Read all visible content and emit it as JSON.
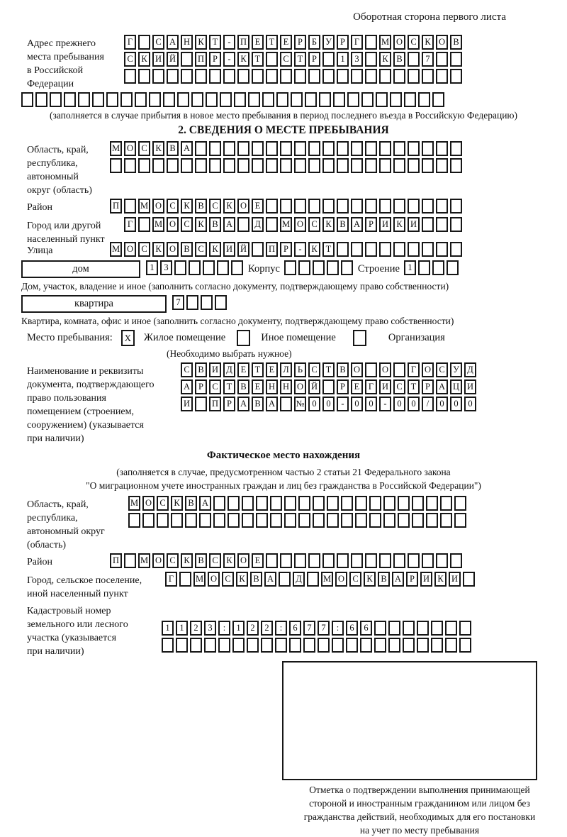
{
  "header": "Оборотная сторона первого листа",
  "labels": {
    "addr": "Адрес прежнего\nместа пребывания\nв Российской\nФедерации",
    "oblast": "Область, край,\nреспублика,\nавтономный\nокруг (область)",
    "rayon": "Район",
    "gorod": "Город или другой\nнаселенный пункт",
    "ulitsa": "Улица",
    "doc": "Наименование и реквизиты\nдокумента, подтверждающего\nправо пользования\nпомещением (строением,\nсооружением) (указывается\nпри наличии)",
    "fact_oblast": "Область, край,\nреспублика,\nавтономный округ\n(область)",
    "fact_rayon": "Район",
    "fact_gorod": "Город, сельское поселение,\nиной населенный пункт",
    "kad": "Кадастровый номер\nземельного или лесного\nучастка (указывается\nпри наличии)"
  },
  "notes": {
    "top": "(заполняется в случае прибытия в новое место пребывания в период последнего въезда в Российскую Федерацию)",
    "dom": "Дом, участок, владение и иное (заполнить согласно документу, подтверждающему право собственности)",
    "kvartira": "Квартира, комната, офис и иное (заполнить согласно документу, подтверждающему право собственности)",
    "choose": "(Необходимо выбрать нужное)"
  },
  "section2": {
    "title": "2. СВЕДЕНИЯ О МЕСТЕ ПРЕБЫВАНИЯ"
  },
  "fact": {
    "title": "Фактическое место нахождения",
    "note1": "(заполняется в случае, предусмотренном частью 2 статьи 21 Федерального закона",
    "note2": "\"О миграционном учете иностранных граждан и лиц без гражданства в Российской Федерации\")"
  },
  "house": {
    "dom": "дом",
    "korpus": "Корпус",
    "stroenie": "Строение",
    "kvartira": "квартира"
  },
  "stay": {
    "label": "Место пребывания:",
    "options": [
      {
        "mark": "X",
        "label": "Жилое помещение"
      },
      {
        "mark": "",
        "label": "Иное помещение"
      },
      {
        "mark": "",
        "label": "Организация"
      }
    ]
  },
  "stamp": {
    "caption": "Отметка о подтверждении выполнения принимающей\nстороной и иностранным гражданином или лицом без\nгражданства действий, необходимых для его постановки\nна учет по месту пребывания"
  },
  "grids": {
    "addr1": {
      "len": 24,
      "text": "Г САНКТ-ПЕТЕРБУРГ МОСКОВ"
    },
    "addr2": {
      "len": 24,
      "text": "СКИЙ ПР-КТ СТР 13 КВ 7"
    },
    "addr3": {
      "len": 24,
      "text": ""
    },
    "addr4": {
      "len": 30,
      "text": ""
    },
    "oblast1": {
      "len": 25,
      "text": "МОСКВА"
    },
    "oblast2": {
      "len": 25,
      "text": ""
    },
    "rayon": {
      "len": 25,
      "text": "П МОСКВСКОЕ"
    },
    "gorod": {
      "len": 24,
      "text": "Г МОСКВА Д МОСКВАРИКИ"
    },
    "ulitsa": {
      "len": 25,
      "text": "МОСКОВСКИЙ ПР-КТ"
    },
    "domnum": {
      "len": 7,
      "text": "13"
    },
    "korpus": {
      "len": 5,
      "text": ""
    },
    "stroenie": {
      "len": 4,
      "text": "1"
    },
    "kvartira": {
      "len": 4,
      "text": "7"
    },
    "doc1": {
      "len": 21,
      "text": "СВИДЕТЕЛЬСТВО О ГОСУД"
    },
    "doc2": {
      "len": 21,
      "text": "АРСТВЕННОЙ РЕГИСТРАЦИ"
    },
    "doc3": {
      "len": 21,
      "text": "И ПРАВА №00-00-00/000"
    },
    "fact_oblast1": {
      "len": 24,
      "text": "МОСКВА"
    },
    "fact_oblast2": {
      "len": 24,
      "text": ""
    },
    "fact_rayon": {
      "len": 25,
      "text": "П МОСКВСКОЕ"
    },
    "fact_gorod": {
      "len": 22,
      "text": "Г МОСКВА Д МОСКВАРИКИ"
    },
    "kad1": {
      "len": 22,
      "text": "1123:122:677:66"
    },
    "kad2": {
      "len": 22,
      "text": ""
    }
  }
}
